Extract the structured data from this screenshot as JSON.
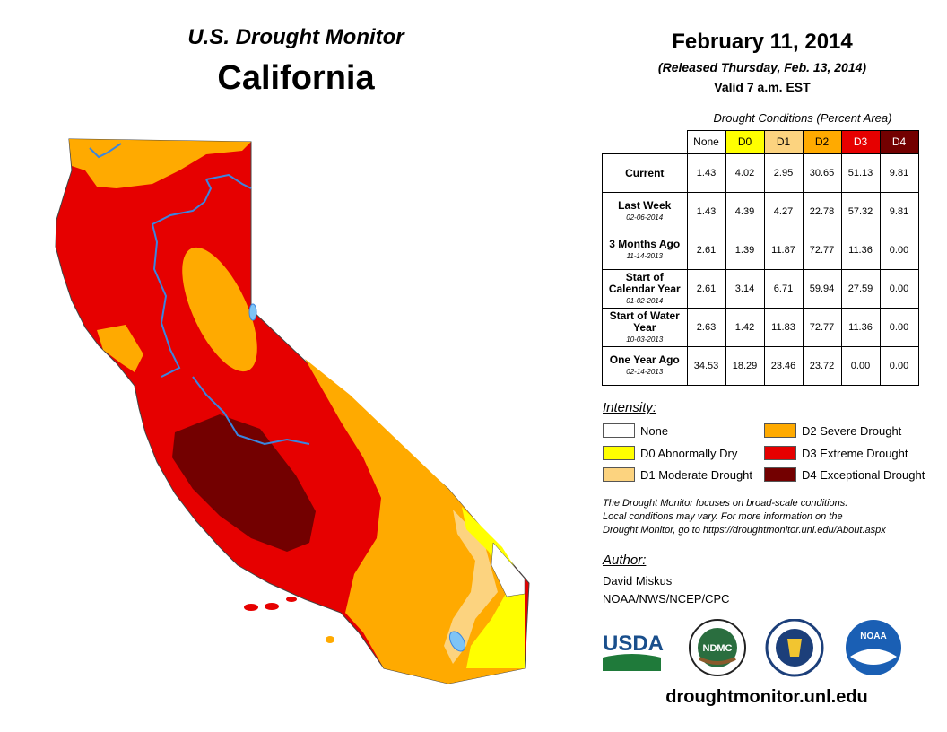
{
  "header": {
    "monitor_title": "U.S. Drought Monitor",
    "state": "California",
    "date": "February 11, 2014",
    "released": "(Released Thursday, Feb. 13, 2014)",
    "valid": "Valid 7 a.m. EST"
  },
  "table": {
    "title": "Drought Conditions (Percent Area)",
    "columns": [
      "None",
      "D0",
      "D1",
      "D2",
      "D3",
      "D4"
    ],
    "rows": [
      {
        "label": "Current",
        "date": "",
        "values": [
          "1.43",
          "4.02",
          "2.95",
          "30.65",
          "51.13",
          "9.81"
        ]
      },
      {
        "label": "Last Week",
        "date": "02-06-2014",
        "values": [
          "1.43",
          "4.39",
          "4.27",
          "22.78",
          "57.32",
          "9.81"
        ]
      },
      {
        "label": "3 Months Ago",
        "date": "11-14-2013",
        "values": [
          "2.61",
          "1.39",
          "11.87",
          "72.77",
          "11.36",
          "0.00"
        ]
      },
      {
        "label": "Start of Calendar Year",
        "date": "01-02-2014",
        "values": [
          "2.61",
          "3.14",
          "6.71",
          "59.94",
          "27.59",
          "0.00"
        ]
      },
      {
        "label": "Start of Water Year",
        "date": "10-03-2013",
        "values": [
          "2.63",
          "1.42",
          "11.83",
          "72.77",
          "11.36",
          "0.00"
        ]
      },
      {
        "label": "One Year Ago",
        "date": "02-14-2013",
        "values": [
          "34.53",
          "18.29",
          "23.46",
          "23.72",
          "0.00",
          "0.00"
        ]
      }
    ]
  },
  "legend": {
    "title": "Intensity:",
    "items": [
      {
        "label": "None",
        "color": "#ffffff"
      },
      {
        "label": "D0 Abnormally Dry",
        "color": "#ffff00"
      },
      {
        "label": "D1 Moderate Drought",
        "color": "#fcd37f"
      },
      {
        "label": "D2 Severe Drought",
        "color": "#ffaa00"
      },
      {
        "label": "D3 Extreme Drought",
        "color": "#e60000"
      },
      {
        "label": "D4 Exceptional Drought",
        "color": "#730000"
      }
    ]
  },
  "note": {
    "line1": "The Drought Monitor focuses on broad-scale conditions.",
    "line2": "Local conditions may vary. For more information on the",
    "line3": "Drought Monitor, go to https://droughtmonitor.unl.edu/About.aspx"
  },
  "author": {
    "title": "Author:",
    "name": "David Miskus",
    "org": "NOAA/NWS/NCEP/CPC"
  },
  "logos": {
    "usda": "USDA",
    "ndmc": "NDMC",
    "noaa": "NOAA"
  },
  "footer_url": "droughtmonitor.unl.edu"
}
